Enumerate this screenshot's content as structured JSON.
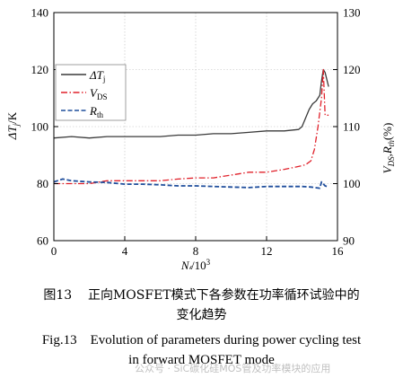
{
  "chart_data": {
    "type": "line",
    "x_label": "N",
    "x_label_sub": "f",
    "x_label_suffix": "/10",
    "x_label_sup": "3",
    "x_range": [
      0,
      16
    ],
    "x_ticks": [
      "0",
      "4",
      "8",
      "12",
      "16"
    ],
    "y_left_label": "ΔT",
    "y_left_label_sub": "j",
    "y_left_label_suffix": "/K",
    "y_left_range": [
      60,
      140
    ],
    "y_left_ticks": [
      "60",
      "80",
      "100",
      "120",
      "140"
    ],
    "y_right_label_a": "V",
    "y_right_label_a_sub": "DS",
    "y_right_label_sep": ",",
    "y_right_label_b": "R",
    "y_right_label_b_sub": "th",
    "y_right_label_suffix": "(%)",
    "y_right_range": [
      90,
      130
    ],
    "y_right_ticks": [
      "90",
      "100",
      "110",
      "120",
      "130"
    ],
    "grid": true,
    "legend_position": "top-left",
    "series": [
      {
        "name": "ΔT",
        "name_sub": "j",
        "axis": "left",
        "color": "#3a3a3a",
        "dash": "solid",
        "x": [
          0,
          1,
          2,
          3,
          4,
          5,
          6,
          7,
          8,
          9,
          10,
          11,
          12,
          13,
          13.8,
          14,
          14.4,
          14.6,
          14.8,
          15.0,
          15.1,
          15.2,
          15.3,
          15.5
        ],
        "y": [
          96,
          96.5,
          96,
          96.5,
          96.5,
          96.5,
          96.5,
          97,
          97,
          97.5,
          97.5,
          98,
          98.5,
          98.5,
          99,
          100,
          106,
          108,
          109,
          111,
          116,
          120,
          119,
          114
        ]
      },
      {
        "name": "V",
        "name_sub": "DS",
        "axis": "right",
        "color": "#e0202a",
        "dash": "dashdot",
        "x": [
          0,
          1,
          2,
          3,
          4,
          5,
          6,
          7,
          8,
          9,
          10,
          11,
          12,
          13,
          13.8,
          14.2,
          14.5,
          14.7,
          14.9,
          15.1,
          15.2,
          15.3,
          15.5
        ],
        "y": [
          100,
          100,
          100,
          100.5,
          100.5,
          100.5,
          100.5,
          100.8,
          101,
          101,
          101.5,
          102,
          102,
          102.5,
          103,
          103.3,
          104,
          106,
          110,
          115,
          120,
          112,
          112
        ]
      },
      {
        "name": "R",
        "name_sub": "th",
        "axis": "right",
        "color": "#1f4e9c",
        "dash": "dashed",
        "x": [
          0,
          0.5,
          1,
          2,
          3,
          4,
          5,
          6,
          7,
          8,
          9,
          10,
          11,
          12,
          13,
          14,
          14.5,
          15,
          15.1,
          15.3,
          15.5
        ],
        "y": [
          100.3,
          100.8,
          100.5,
          100.3,
          100.2,
          99.9,
          99.9,
          99.8,
          99.6,
          99.6,
          99.5,
          99.4,
          99.3,
          99.5,
          99.5,
          99.5,
          99.4,
          99.2,
          100.3,
          99.6,
          99.4
        ]
      }
    ]
  },
  "caption_zh": {
    "label": "图13",
    "line1": "正向MOSFET模式下各参数在功率循环试验中的",
    "line2": "变化趋势"
  },
  "caption_en": {
    "label": "Fig.13",
    "line1": "Evolution of parameters during power cycling test",
    "line2": "in forward MOSFET mode"
  },
  "watermark": "公众号 · SiC碳化硅MOS管及功率模块的应用"
}
